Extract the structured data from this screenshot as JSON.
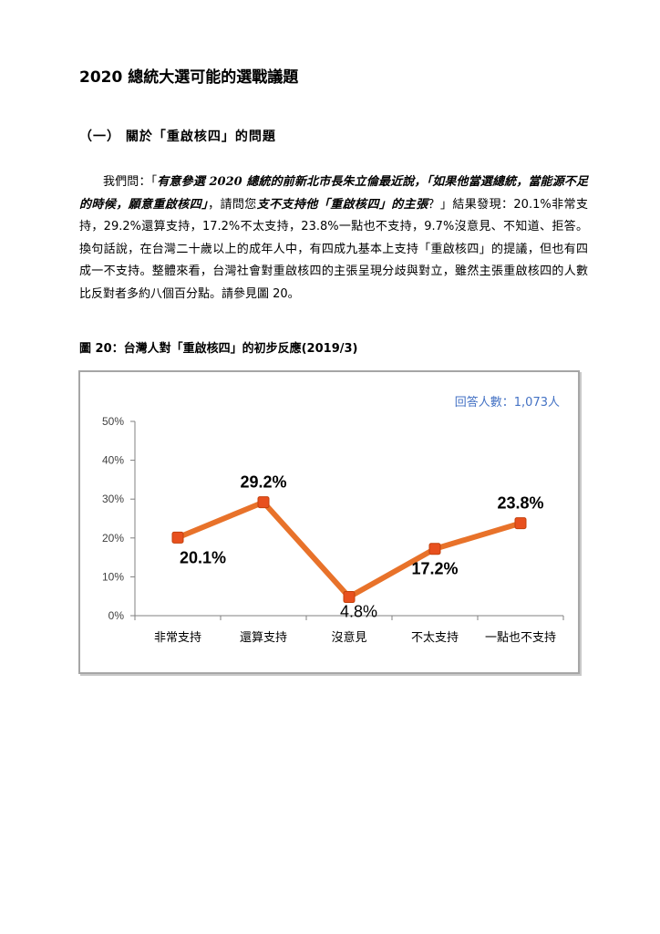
{
  "doc": {
    "title": "2020 總統大選可能的選戰議題",
    "section_heading": "（一）  關於「重啟核四」的問題",
    "paragraph": {
      "p1": "我們問：「",
      "quote1": "有意參選 2020 總統的前新北市長朱立倫最近說，「如果他當選總統，當能源不足的時候，願意重啟核四」",
      "p2": "，請問您",
      "quote2": "支不支持他「重啟核四」的主張",
      "p3": "？」結果發現：20.1%非常支持，29.2%還算支持，17.2%不太支持，23.8%一點也不支持，9.7%沒意見、不知道、拒答。換句話說，在台灣二十歲以上的成年人中，有四成九基本上支持「重啟核四」的提議，但也有四成一不支持。整體來看，台灣社會對重啟核四的主張呈現分歧與對立，雖然主張重啟核四的人數比反對者多約八個百分點。請參見圖 20。"
    },
    "figure_caption": "圖 20：台灣人對「重啟核四」的初步反應(2019/3)"
  },
  "chart": {
    "respondents_label": "回答人數：1,073人",
    "line_color": "#e8722a",
    "marker_color": "#e8501e"
  },
  "chart_data": {
    "type": "line",
    "categories": [
      "非常支持",
      "還算支持",
      "沒意見",
      "不太支持",
      "一點也不支持"
    ],
    "values": [
      20.1,
      29.2,
      4.8,
      17.2,
      23.8
    ],
    "data_labels": [
      "20.1%",
      "29.2%",
      "4.8%",
      "17.2%",
      "23.8%"
    ],
    "yticks": [
      "0%",
      "10%",
      "20%",
      "30%",
      "40%",
      "50%"
    ],
    "ylim": [
      0,
      50
    ],
    "grid": false,
    "title": "",
    "xlabel": "",
    "ylabel": ""
  }
}
